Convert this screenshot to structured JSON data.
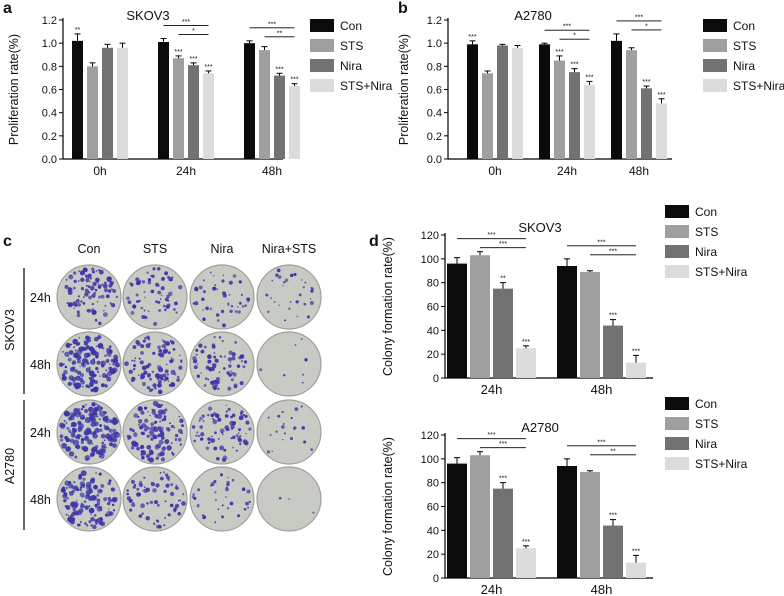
{
  "figure": {
    "panel_labels": {
      "a": "a",
      "b": "b",
      "c": "c",
      "d": "d"
    }
  },
  "legend_labels": [
    "Con",
    "STS",
    "Nira",
    "STS+Nira"
  ],
  "colors": {
    "Con": "#0b0b0b",
    "STS": "#9f9f9f",
    "Nira": "#727272",
    "STS+Nira": "#dcdcdc",
    "plate": "#c8cac4",
    "colony": "#3b35a8"
  },
  "sig": {
    "one": "*",
    "two": "**",
    "three": "***"
  },
  "chart_data": [
    {
      "panel": "a",
      "type": "bar",
      "title": "SKOV3",
      "ylabel": "Proliferation rate(%)",
      "ylim": [
        0,
        1.2
      ],
      "yticks": [
        "0.0",
        "0.2",
        "0.4",
        "0.6",
        "0.8",
        "1.0",
        "1.2"
      ],
      "categories": [
        "0h",
        "24h",
        "48h"
      ],
      "series": [
        {
          "name": "Con",
          "values": [
            1.02,
            1.01,
            1.0
          ],
          "err": [
            0.06,
            0.03,
            0.02
          ]
        },
        {
          "name": "STS",
          "values": [
            0.8,
            0.87,
            0.94
          ],
          "err": [
            0.03,
            0.02,
            0.03
          ]
        },
        {
          "name": "Nira",
          "values": [
            0.96,
            0.81,
            0.72
          ],
          "err": [
            0.03,
            0.02,
            0.02
          ]
        },
        {
          "name": "STS+Nira",
          "values": [
            0.96,
            0.74,
            0.63
          ],
          "err": [
            0.04,
            0.02,
            0.02
          ]
        }
      ],
      "bar_sig": [
        [
          "**",
          "",
          "",
          ""
        ],
        [
          "",
          "***",
          "***",
          "***"
        ],
        [
          "",
          "",
          "***",
          "***"
        ]
      ],
      "brackets": [
        {
          "group": 1,
          "from": 0,
          "to": 3,
          "label": "***"
        },
        {
          "group": 1,
          "from": 1,
          "to": 3,
          "label": "*"
        },
        {
          "group": 2,
          "from": 0,
          "to": 3,
          "label": "***"
        },
        {
          "group": 2,
          "from": 1,
          "to": 3,
          "label": "**"
        }
      ]
    },
    {
      "panel": "b",
      "type": "bar",
      "title": "A2780",
      "ylabel": "Proliferation rate(%)",
      "ylim": [
        0,
        1.2
      ],
      "yticks": [
        "0.0",
        "0.2",
        "0.4",
        "0.6",
        "0.8",
        "1.0",
        "1.2"
      ],
      "categories": [
        "0h",
        "24h",
        "48h"
      ],
      "series": [
        {
          "name": "Con",
          "values": [
            0.99,
            0.99,
            1.02
          ],
          "err": [
            0.03,
            0.01,
            0.06
          ]
        },
        {
          "name": "STS",
          "values": [
            0.74,
            0.85,
            0.94
          ],
          "err": [
            0.02,
            0.04,
            0.02
          ]
        },
        {
          "name": "Nira",
          "values": [
            0.98,
            0.75,
            0.61
          ],
          "err": [
            0.01,
            0.03,
            0.02
          ]
        },
        {
          "name": "STS+Nira",
          "values": [
            0.96,
            0.64,
            0.48
          ],
          "err": [
            0.02,
            0.03,
            0.04
          ]
        }
      ],
      "bar_sig": [
        [
          "***",
          "",
          "",
          ""
        ],
        [
          "",
          "***",
          "***",
          "***"
        ],
        [
          "",
          "",
          "***",
          "***"
        ]
      ],
      "brackets": [
        {
          "group": 1,
          "from": 0,
          "to": 3,
          "label": "***"
        },
        {
          "group": 1,
          "from": 1,
          "to": 3,
          "label": "*"
        },
        {
          "group": 2,
          "from": 0,
          "to": 3,
          "label": "***"
        },
        {
          "group": 2,
          "from": 1,
          "to": 3,
          "label": "*"
        }
      ]
    },
    {
      "panel": "d-top",
      "type": "bar",
      "title": "SKOV3",
      "ylabel": "Colony formation rate(%)",
      "ylim": [
        0,
        120
      ],
      "yticks": [
        "0",
        "20",
        "40",
        "60",
        "80",
        "100",
        "120"
      ],
      "categories": [
        "24h",
        "48h"
      ],
      "series": [
        {
          "name": "Con",
          "values": [
            96,
            94
          ],
          "err": [
            5,
            6
          ]
        },
        {
          "name": "STS",
          "values": [
            103,
            89
          ],
          "err": [
            3,
            1
          ]
        },
        {
          "name": "Nira",
          "values": [
            75,
            44
          ],
          "err": [
            5,
            5
          ]
        },
        {
          "name": "STS+Nira",
          "values": [
            25,
            13
          ],
          "err": [
            2,
            6
          ]
        }
      ],
      "bar_sig": [
        [
          "",
          "",
          "**",
          "***"
        ],
        [
          "",
          "",
          "***",
          "***"
        ]
      ],
      "brackets": [
        {
          "group": 0,
          "from": 0,
          "to": 3,
          "label": "***"
        },
        {
          "group": 0,
          "from": 1,
          "to": 3,
          "label": "***"
        },
        {
          "group": 1,
          "from": 0,
          "to": 3,
          "label": "***"
        },
        {
          "group": 1,
          "from": 1,
          "to": 3,
          "label": "***"
        }
      ]
    },
    {
      "panel": "d-bottom",
      "type": "bar",
      "title": "A2780",
      "ylabel": "Colony formation rate(%)",
      "ylim": [
        0,
        120
      ],
      "yticks": [
        "0",
        "20",
        "40",
        "60",
        "80",
        "100",
        "120"
      ],
      "categories": [
        "24h",
        "48h"
      ],
      "series": [
        {
          "name": "Con",
          "values": [
            96,
            94
          ],
          "err": [
            5,
            6
          ]
        },
        {
          "name": "STS",
          "values": [
            103,
            89
          ],
          "err": [
            3,
            1
          ]
        },
        {
          "name": "Nira",
          "values": [
            75,
            44
          ],
          "err": [
            5,
            5
          ]
        },
        {
          "name": "STS+Nira",
          "values": [
            25,
            13
          ],
          "err": [
            2,
            6
          ]
        }
      ],
      "bar_sig": [
        [
          "",
          "",
          "***",
          "***"
        ],
        [
          "",
          "",
          "***",
          "***"
        ]
      ],
      "brackets": [
        {
          "group": 0,
          "from": 0,
          "to": 3,
          "label": "***"
        },
        {
          "group": 0,
          "from": 1,
          "to": 3,
          "label": "***"
        },
        {
          "group": 1,
          "from": 0,
          "to": 3,
          "label": "***"
        },
        {
          "group": 1,
          "from": 1,
          "to": 3,
          "label": "**"
        }
      ]
    }
  ],
  "plates": {
    "columns": [
      "Con",
      "STS",
      "Nira",
      "Nira+STS"
    ],
    "groups": [
      {
        "name": "SKOV3",
        "rows": [
          "24h",
          "48h"
        ]
      },
      {
        "name": "A2780",
        "rows": [
          "24h",
          "48h"
        ]
      }
    ],
    "density": [
      [
        0.55,
        0.35,
        0.25,
        0.18
      ],
      [
        0.8,
        0.55,
        0.4,
        0.04
      ],
      [
        0.9,
        0.7,
        0.45,
        0.12
      ],
      [
        0.75,
        0.4,
        0.2,
        0.02
      ]
    ]
  }
}
